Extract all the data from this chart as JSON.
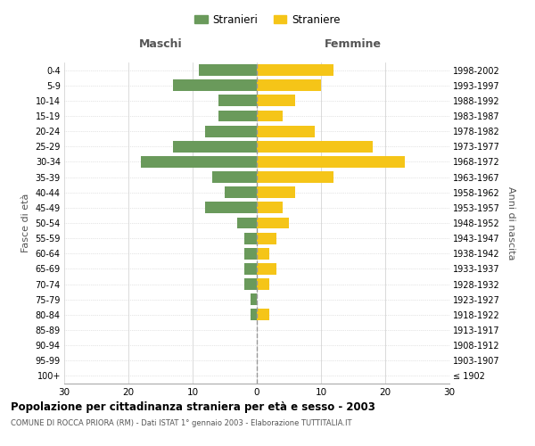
{
  "age_groups": [
    "100+",
    "95-99",
    "90-94",
    "85-89",
    "80-84",
    "75-79",
    "70-74",
    "65-69",
    "60-64",
    "55-59",
    "50-54",
    "45-49",
    "40-44",
    "35-39",
    "30-34",
    "25-29",
    "20-24",
    "15-19",
    "10-14",
    "5-9",
    "0-4"
  ],
  "birth_years": [
    "≤ 1902",
    "1903-1907",
    "1908-1912",
    "1913-1917",
    "1918-1922",
    "1923-1927",
    "1928-1932",
    "1933-1937",
    "1938-1942",
    "1943-1947",
    "1948-1952",
    "1953-1957",
    "1958-1962",
    "1963-1967",
    "1968-1972",
    "1973-1977",
    "1978-1982",
    "1983-1987",
    "1988-1992",
    "1993-1997",
    "1998-2002"
  ],
  "maschi": [
    0,
    0,
    0,
    0,
    1,
    1,
    2,
    2,
    2,
    2,
    3,
    8,
    5,
    7,
    18,
    13,
    8,
    6,
    6,
    13,
    9
  ],
  "femmine": [
    0,
    0,
    0,
    0,
    2,
    0,
    2,
    3,
    2,
    3,
    5,
    4,
    6,
    12,
    23,
    18,
    9,
    4,
    6,
    10,
    12
  ],
  "maschi_color": "#6a9a5b",
  "femmine_color": "#f5c518",
  "background_color": "#ffffff",
  "grid_color": "#cccccc",
  "title": "Popolazione per cittadinanza straniera per età e sesso - 2003",
  "subtitle": "COMUNE DI ROCCA PRIORA (RM) - Dati ISTAT 1° gennaio 2003 - Elaborazione TUTTITALIA.IT",
  "ylabel_left": "Fasce di età",
  "ylabel_right": "Anni di nascita",
  "xlabel_maschi": "Maschi",
  "xlabel_femmine": "Femmine",
  "legend_maschi": "Stranieri",
  "legend_femmine": "Straniere",
  "xlim": 30,
  "figsize": [
    6.0,
    5.0
  ],
  "dpi": 100
}
